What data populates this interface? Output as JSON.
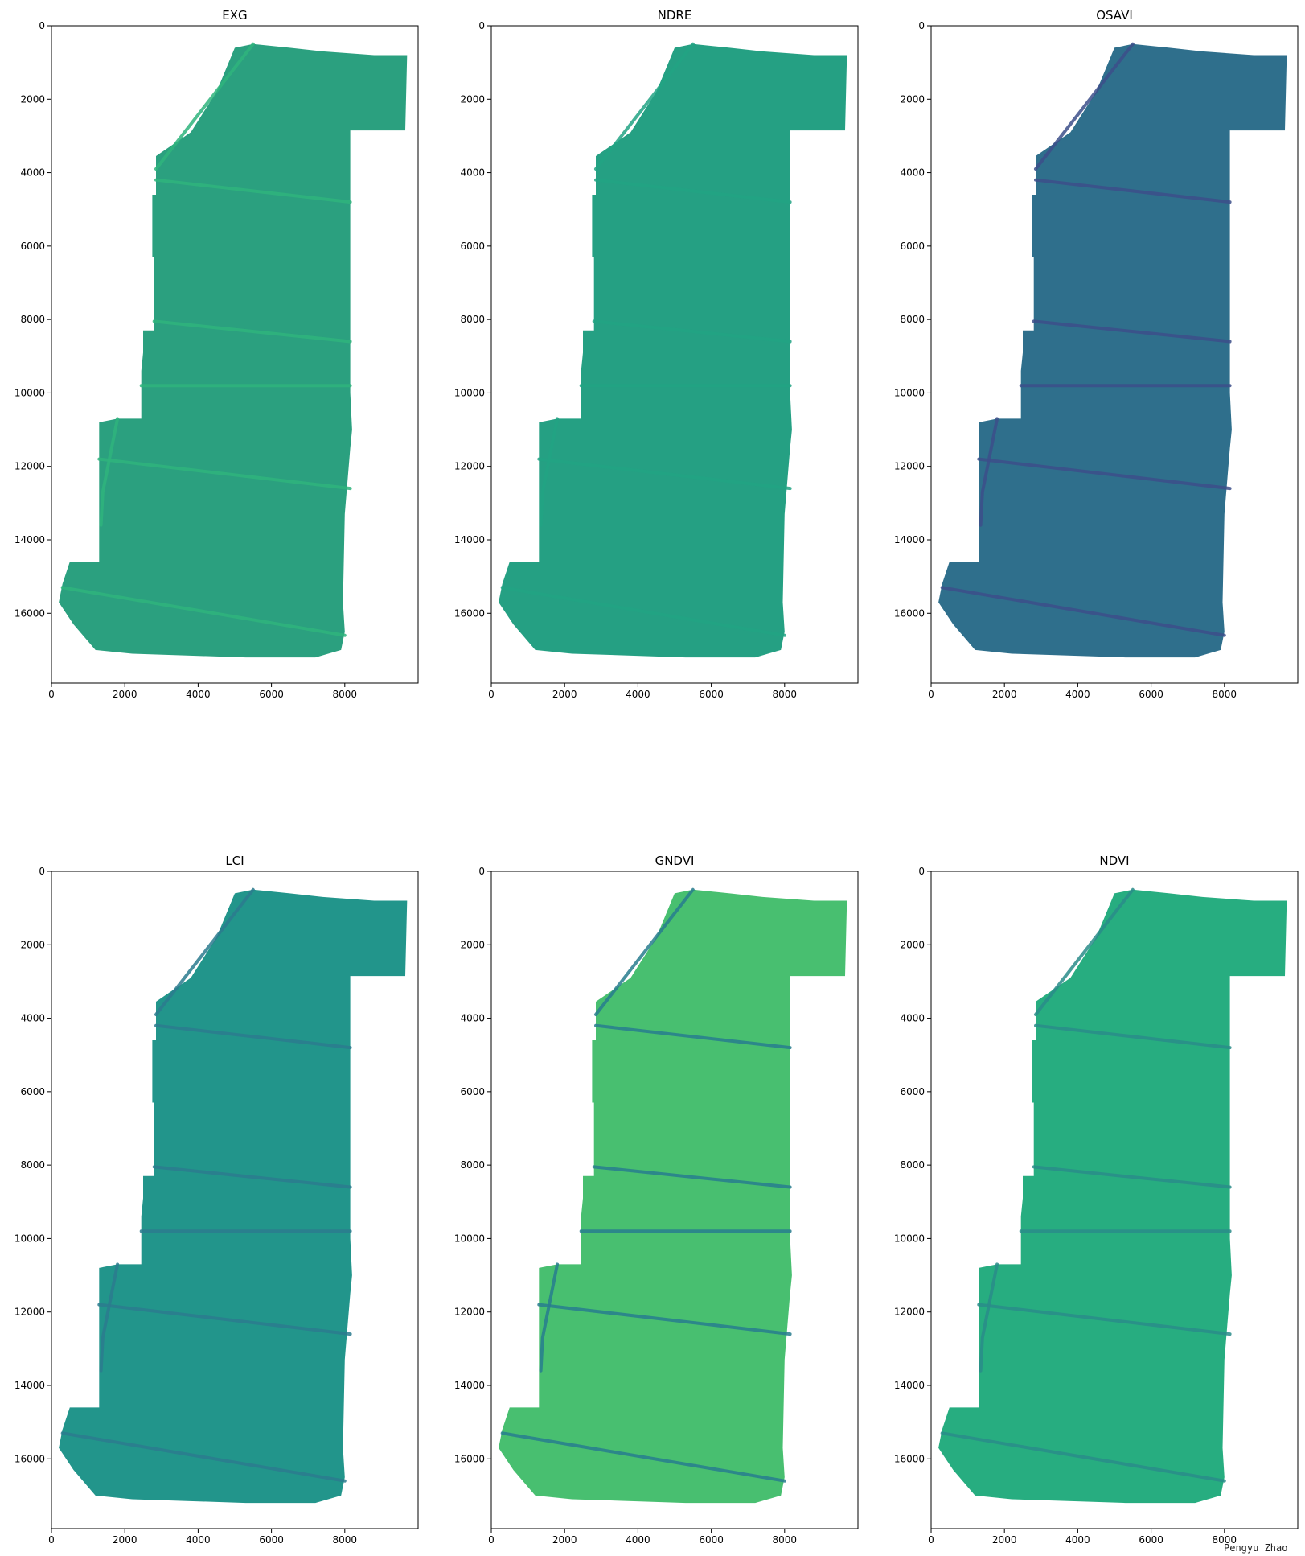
{
  "chart_data": [
    {
      "type": "heatmap",
      "title": "EXG",
      "xticks": [
        0,
        2000,
        4000,
        6000,
        8000
      ],
      "yticks": [
        0,
        2000,
        4000,
        6000,
        8000,
        10000,
        12000,
        14000,
        16000
      ],
      "xlim": [
        0,
        10000
      ],
      "ylim": [
        17900,
        0
      ],
      "colormap": "viridis",
      "base_color": "#2ba07f"
    },
    {
      "type": "heatmap",
      "title": "NDRE",
      "xticks": [
        0,
        2000,
        4000,
        6000,
        8000
      ],
      "yticks": [
        0,
        2000,
        4000,
        6000,
        8000,
        10000,
        12000,
        14000,
        16000
      ],
      "xlim": [
        0,
        10000
      ],
      "ylim": [
        17900,
        0
      ],
      "colormap": "viridis",
      "base_color": "#25a083"
    },
    {
      "type": "heatmap",
      "title": "OSAVI",
      "xticks": [
        0,
        2000,
        4000,
        6000,
        8000
      ],
      "yticks": [
        0,
        2000,
        4000,
        6000,
        8000,
        10000,
        12000,
        14000,
        16000
      ],
      "xlim": [
        0,
        10000
      ],
      "ylim": [
        17900,
        0
      ],
      "colormap": "viridis",
      "base_color": "#2f6f8c"
    },
    {
      "type": "heatmap",
      "title": "LCI",
      "xticks": [
        0,
        2000,
        4000,
        6000,
        8000
      ],
      "yticks": [
        0,
        2000,
        4000,
        6000,
        8000,
        10000,
        12000,
        14000,
        16000
      ],
      "xlim": [
        0,
        10000
      ],
      "ylim": [
        17900,
        0
      ],
      "colormap": "viridis",
      "base_color": "#22958b"
    },
    {
      "type": "heatmap",
      "title": "GNDVI",
      "xticks": [
        0,
        2000,
        4000,
        6000,
        8000
      ],
      "yticks": [
        0,
        2000,
        4000,
        6000,
        8000,
        10000,
        12000,
        14000,
        16000
      ],
      "xlim": [
        0,
        10000
      ],
      "ylim": [
        17900,
        0
      ],
      "colormap": "viridis",
      "base_color": "#48bf70"
    },
    {
      "type": "heatmap",
      "title": "NDVI",
      "xticks": [
        0,
        2000,
        4000,
        6000,
        8000
      ],
      "yticks": [
        0,
        2000,
        4000,
        6000,
        8000,
        10000,
        12000,
        14000,
        16000
      ],
      "xlim": [
        0,
        10000
      ],
      "ylim": [
        17900,
        0
      ],
      "colormap": "viridis",
      "base_color": "#27ad80"
    }
  ],
  "field_outline": [
    [
      5500,
      500
    ],
    [
      5000,
      600
    ],
    [
      4500,
      1800
    ],
    [
      3800,
      2900
    ],
    [
      2850,
      3550
    ],
    [
      2850,
      4600
    ],
    [
      2750,
      4600
    ],
    [
      2750,
      5500
    ],
    [
      2750,
      6300
    ],
    [
      2800,
      6300
    ],
    [
      2800,
      8300
    ],
    [
      2500,
      8300
    ],
    [
      2500,
      8900
    ],
    [
      2450,
      9400
    ],
    [
      2450,
      10700
    ],
    [
      1800,
      10700
    ],
    [
      1300,
      10800
    ],
    [
      1300,
      14600
    ],
    [
      500,
      14600
    ],
    [
      300,
      15200
    ],
    [
      200,
      15700
    ],
    [
      600,
      16300
    ],
    [
      1200,
      17000
    ],
    [
      2200,
      17100
    ],
    [
      5300,
      17200
    ],
    [
      7200,
      17200
    ],
    [
      7900,
      17000
    ],
    [
      8000,
      16500
    ],
    [
      7950,
      15700
    ],
    [
      8000,
      13300
    ],
    [
      8150,
      11500
    ],
    [
      8200,
      11000
    ],
    [
      8150,
      10000
    ],
    [
      8150,
      8500
    ],
    [
      8150,
      2850
    ],
    [
      9650,
      2850
    ],
    [
      9700,
      800
    ],
    [
      8800,
      800
    ],
    [
      7400,
      700
    ],
    [
      6500,
      600
    ]
  ],
  "linear_features": [
    {
      "points": [
        [
          2850,
          4200
        ],
        [
          8150,
          4800
        ]
      ]
    },
    {
      "points": [
        [
          2800,
          8050
        ],
        [
          8150,
          8600
        ]
      ]
    },
    {
      "points": [
        [
          2450,
          9800
        ],
        [
          8150,
          9800
        ]
      ]
    },
    {
      "points": [
        [
          1300,
          11800
        ],
        [
          8150,
          12600
        ]
      ]
    },
    {
      "points": [
        [
          300,
          15300
        ],
        [
          8000,
          16600
        ]
      ]
    },
    {
      "points": [
        [
          5500,
          500
        ],
        [
          2850,
          3900
        ]
      ]
    },
    {
      "points": [
        [
          1800,
          10700
        ],
        [
          1400,
          12700
        ],
        [
          1350,
          13600
        ]
      ]
    }
  ],
  "index_colors": {
    "feature": [
      "#2fb47c",
      "#22a384",
      "#3c4f8a",
      "#2b7b8e",
      "#287c8e",
      "#2a8c89"
    ]
  },
  "watermark": "Pengyu Zhao"
}
